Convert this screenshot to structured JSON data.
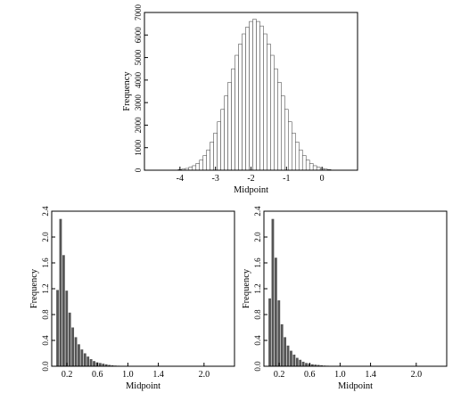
{
  "chart_data": [
    {
      "type": "bar",
      "title": "",
      "xlabel": "Midpoint",
      "ylabel": "Frequency",
      "xlim": [
        -5,
        1
      ],
      "ylim": [
        0,
        7000
      ],
      "bar_width": 0.1,
      "bar_style": "outlined",
      "xticks": [
        -4,
        -3,
        -2,
        -1,
        0
      ],
      "xtick_labels": [
        "-4",
        "-3",
        "-2",
        "-1",
        "0"
      ],
      "yticks": [
        0,
        1000,
        2000,
        3000,
        4000,
        5000,
        6000,
        7000
      ],
      "ytick_labels": [
        "0",
        "1000",
        "2000",
        "3000",
        "4000",
        "5000",
        "6000",
        "7000"
      ],
      "x": [
        -4.0,
        -3.9,
        -3.8,
        -3.7,
        -3.6,
        -3.5,
        -3.4,
        -3.3,
        -3.2,
        -3.1,
        -3.0,
        -2.9,
        -2.8,
        -2.7,
        -2.6,
        -2.5,
        -2.4,
        -2.3,
        -2.2,
        -2.1,
        -2.0,
        -1.9,
        -1.8,
        -1.7,
        -1.6,
        -1.5,
        -1.4,
        -1.3,
        -1.2,
        -1.1,
        -1.0,
        -0.9,
        -0.8,
        -0.7,
        -0.6,
        -0.5,
        -0.4,
        -0.3,
        -0.2,
        -0.1,
        0.0,
        0.1,
        0.2
      ],
      "values": [
        30,
        50,
        80,
        130,
        200,
        300,
        450,
        650,
        900,
        1250,
        1650,
        2150,
        2700,
        3300,
        3900,
        4500,
        5100,
        5600,
        6050,
        6350,
        6600,
        6700,
        6600,
        6400,
        6050,
        5600,
        5100,
        4500,
        3900,
        3300,
        2700,
        2150,
        1650,
        1250,
        900,
        650,
        450,
        300,
        200,
        130,
        80,
        50,
        30
      ]
    },
    {
      "type": "bar",
      "title": "",
      "xlabel": "Midpoint",
      "ylabel": "Frequency",
      "xlim": [
        0,
        2.4
      ],
      "ylim": [
        0,
        2.4
      ],
      "bar_width": 0.04,
      "bar_style": "filled",
      "xticks": [
        0.2,
        0.6,
        1.0,
        1.4,
        2.0
      ],
      "xtick_labels": [
        "0.2",
        "0.6",
        "1.0",
        "1.4",
        "2.0"
      ],
      "yticks": [
        0.0,
        0.4,
        0.8,
        1.2,
        1.6,
        2.0,
        2.4
      ],
      "ytick_labels": [
        "0.0",
        "0.4",
        "0.8",
        "1.2",
        "1.6",
        "2.0",
        "2.4"
      ],
      "x": [
        0.08,
        0.12,
        0.16,
        0.2,
        0.24,
        0.28,
        0.32,
        0.36,
        0.4,
        0.44,
        0.48,
        0.52,
        0.56,
        0.6,
        0.64,
        0.68,
        0.72,
        0.76,
        0.8,
        0.84,
        0.88,
        0.92,
        0.96,
        1.0
      ],
      "values": [
        1.18,
        2.28,
        1.72,
        1.17,
        0.83,
        0.6,
        0.45,
        0.34,
        0.26,
        0.2,
        0.15,
        0.11,
        0.08,
        0.06,
        0.05,
        0.04,
        0.03,
        0.02,
        0.015,
        0.01,
        0.008,
        0.006,
        0.005,
        0.004
      ]
    },
    {
      "type": "bar",
      "title": "",
      "xlabel": "Midpoint",
      "ylabel": "Frequency",
      "xlim": [
        0,
        2.4
      ],
      "ylim": [
        0,
        2.4
      ],
      "bar_width": 0.04,
      "bar_style": "filled",
      "xticks": [
        0.2,
        0.6,
        1.0,
        1.4,
        2.0
      ],
      "xtick_labels": [
        "0.2",
        "0.6",
        "1.0",
        "1.4",
        "2.0"
      ],
      "yticks": [
        0.0,
        0.4,
        0.8,
        1.2,
        1.6,
        2.0,
        2.4
      ],
      "ytick_labels": [
        "0.0",
        "0.4",
        "0.8",
        "1.2",
        "1.6",
        "2.0",
        "2.4"
      ],
      "x": [
        0.08,
        0.12,
        0.16,
        0.2,
        0.24,
        0.28,
        0.32,
        0.36,
        0.4,
        0.44,
        0.48,
        0.52,
        0.56,
        0.6,
        0.64,
        0.68,
        0.72,
        0.76,
        0.8,
        0.84,
        0.88,
        0.92,
        0.96,
        1.0
      ],
      "values": [
        1.05,
        2.28,
        1.68,
        1.02,
        0.65,
        0.45,
        0.32,
        0.24,
        0.18,
        0.13,
        0.1,
        0.07,
        0.05,
        0.04,
        0.03,
        0.025,
        0.02,
        0.015,
        0.01,
        0.008,
        0.006,
        0.005,
        0.004,
        0.003
      ]
    }
  ]
}
